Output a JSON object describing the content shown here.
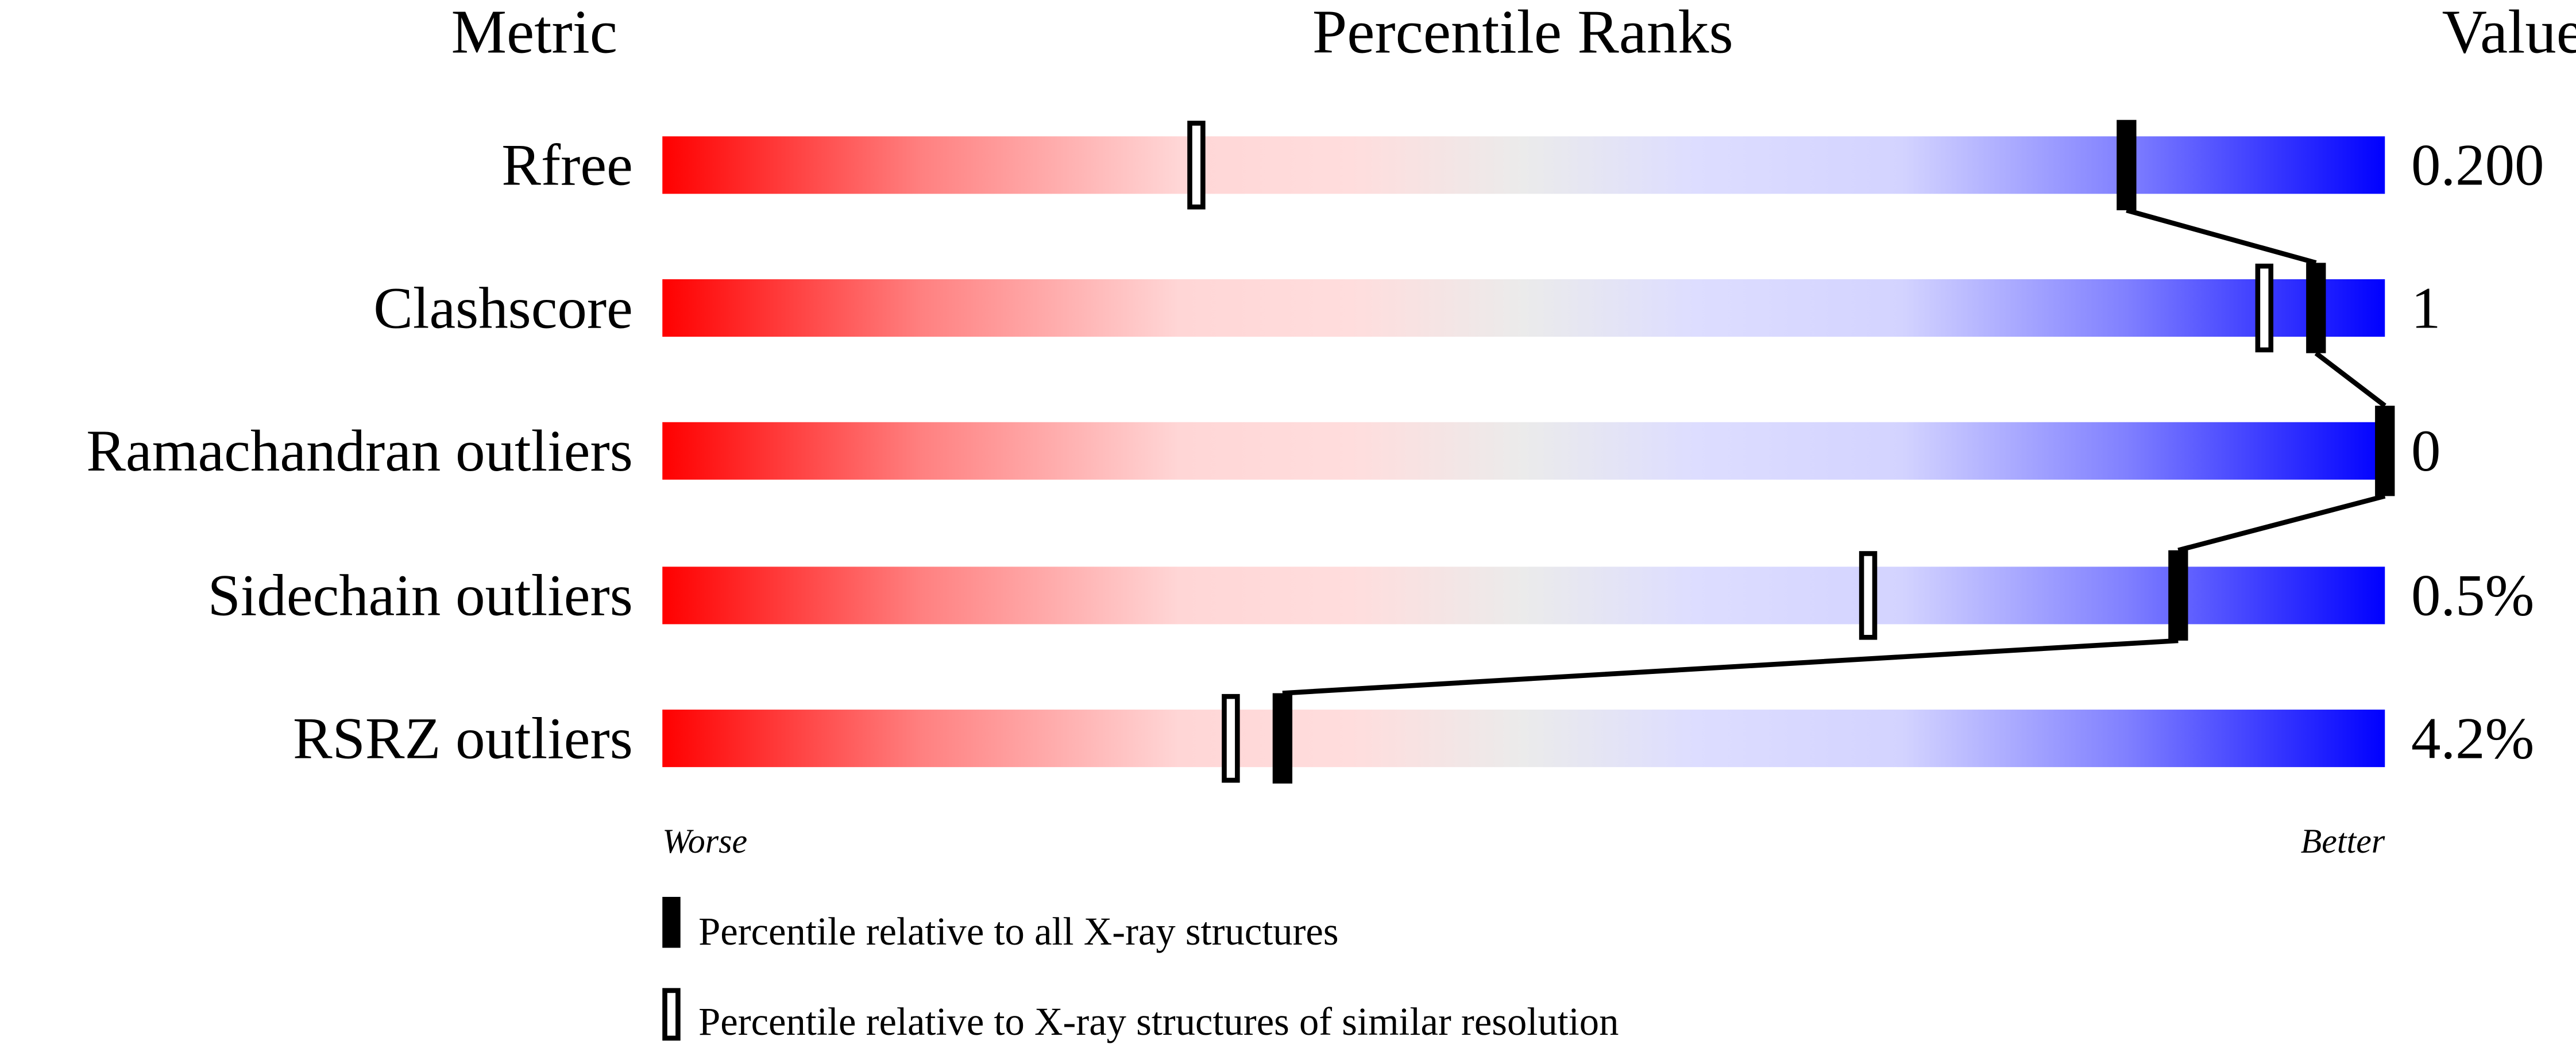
{
  "chart_data": {
    "type": "percentile-ranks",
    "headers": {
      "metric": "Metric",
      "ranks": "Percentile Ranks",
      "value": "Value"
    },
    "xlim": [
      0,
      100
    ],
    "metrics": [
      {
        "name": "Rfree",
        "value": "0.200",
        "percentile_all": 85,
        "percentile_similar": 31
      },
      {
        "name": "Clashscore",
        "value": "1",
        "percentile_all": 96,
        "percentile_similar": 93
      },
      {
        "name": "Ramachandran outliers",
        "value": "0",
        "percentile_all": 100,
        "percentile_similar": 100
      },
      {
        "name": "Sidechain outliers",
        "value": "0.5%",
        "percentile_all": 88,
        "percentile_similar": 70
      },
      {
        "name": "RSRZ outliers",
        "value": "4.2%",
        "percentile_all": 36,
        "percentile_similar": 33
      }
    ],
    "axis_labels": {
      "left": "Worse",
      "right": "Better"
    },
    "legend": {
      "filled": "Percentile relative to all X-ray structures",
      "open": "Percentile relative to X-ray structures of similar resolution"
    },
    "colors": {
      "worse": "#ff0000",
      "middle": "#ebebeb",
      "better": "#0000ff",
      "marker": "#000000"
    }
  }
}
